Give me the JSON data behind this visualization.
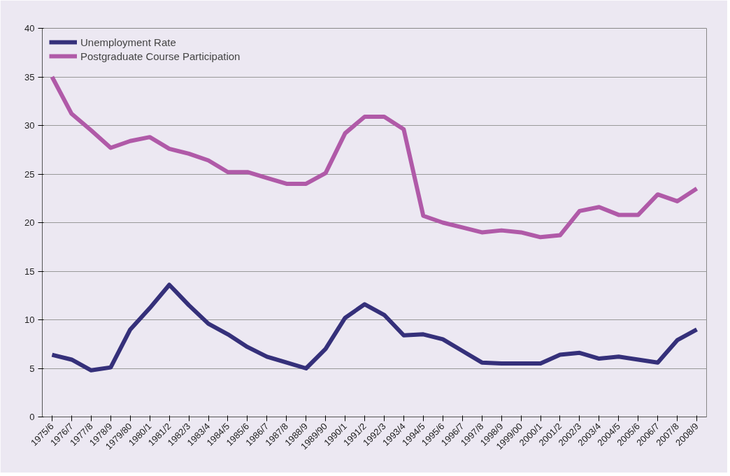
{
  "chart_data": {
    "type": "line",
    "categories": [
      "1975/6",
      "1976/7",
      "1977/8",
      "1978/9",
      "1979/80",
      "1980/1",
      "1981/2",
      "1982/3",
      "1983/4",
      "1984/5",
      "1985/6",
      "1986/7",
      "1987/8",
      "1988/9",
      "1989/90",
      "1990/1",
      "1991/2",
      "1992/3",
      "1993/4",
      "1994/5",
      "1995/6",
      "1996/7",
      "1997/8",
      "1998/9",
      "1999/00",
      "2000/1",
      "2001/2",
      "2002/3",
      "2003/4",
      "2004/5",
      "2005/6",
      "2006/7",
      "2007/8",
      "2008/9"
    ],
    "series": [
      {
        "name": "Unemployment Rate",
        "color": "#35307a",
        "values": [
          6.4,
          5.9,
          4.8,
          5.1,
          9.0,
          11.2,
          13.6,
          11.5,
          9.6,
          8.5,
          7.2,
          6.2,
          5.6,
          5.0,
          7.0,
          10.2,
          11.6,
          10.5,
          8.4,
          8.5,
          8.0,
          6.8,
          5.6,
          5.5,
          5.5,
          5.5,
          6.4,
          6.6,
          6.0,
          6.2,
          5.9,
          5.6,
          7.9,
          9.0
        ]
      },
      {
        "name": "Postgraduate Course Participation",
        "color": "#b05aa8",
        "values": [
          35.0,
          31.2,
          29.5,
          27.7,
          28.4,
          28.8,
          27.6,
          27.1,
          26.4,
          25.2,
          25.2,
          24.6,
          24.0,
          24.0,
          25.1,
          29.2,
          30.9,
          30.9,
          29.6,
          20.7,
          20.0,
          19.5,
          19.0,
          19.2,
          19.0,
          18.5,
          18.7,
          21.2,
          21.6,
          20.8,
          20.8,
          22.9,
          22.2,
          23.5
        ]
      }
    ],
    "ylim": [
      0,
      40
    ],
    "yticks": [
      0,
      5,
      10,
      15,
      20,
      25,
      30,
      35,
      40
    ],
    "grid": "y",
    "legend": "top left",
    "marker": "none",
    "line_style": "solid"
  }
}
